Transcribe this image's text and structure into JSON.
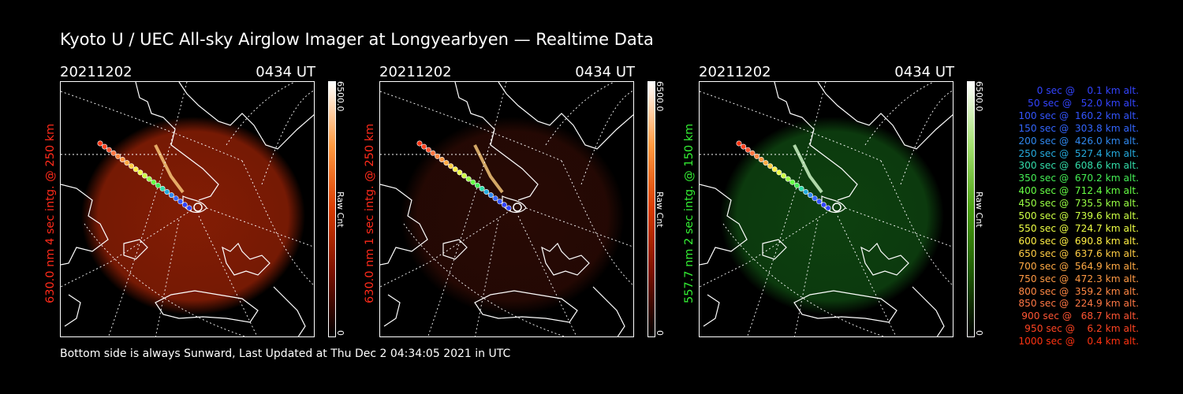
{
  "title": "Kyoto U / UEC All-sky Airglow Imager at Longyearbyen — Realtime Data",
  "footer": "Bottom side is always Sunward, Last Updated at Thu Dec  2 04:34:05 2021 in UTC",
  "panels": [
    {
      "date": "20211202",
      "time": "0434 UT",
      "side_label": "630.0 nm 4 sec intg. @ 250 km",
      "label_color": "#ff2a1a",
      "cbar_max": "6500.0",
      "cbar_min": "0",
      "cbar_unit": "Raw Cnt",
      "glow_color": "#8a1e05",
      "cbar_colors": [
        "#000000",
        "#7a1000",
        "#d83a00",
        "#ff9a40",
        "#ffffff"
      ]
    },
    {
      "date": "20211202",
      "time": "0434 UT",
      "side_label": "630.0 nm 1 sec intg. @ 250 km",
      "label_color": "#ff2a1a",
      "cbar_max": "6500.0",
      "cbar_min": "0",
      "cbar_unit": "Raw Cnt",
      "glow_color": "#2a0a04",
      "cbar_colors": [
        "#000000",
        "#7a1000",
        "#d83a00",
        "#ff9a40",
        "#ffffff"
      ]
    },
    {
      "date": "20211202",
      "time": "0434 UT",
      "side_label": "557.7 nm 2 sec intg. @ 150 km",
      "label_color": "#33ee33",
      "cbar_max": "6500.0",
      "cbar_min": "0",
      "cbar_unit": "Raw Cnt",
      "glow_color": "#0e4410",
      "cbar_colors": [
        "#000000",
        "#1f5a05",
        "#4aa010",
        "#a4e070",
        "#ffffff"
      ]
    }
  ],
  "legend": [
    {
      "text": "   0 sec @    0.1 km alt.",
      "color": "#3344ff"
    },
    {
      "text": "  50 sec @   52.0 km alt.",
      "color": "#3344ff"
    },
    {
      "text": " 100 sec @  160.2 km alt.",
      "color": "#3355ff"
    },
    {
      "text": " 150 sec @  303.8 km alt.",
      "color": "#3366ff"
    },
    {
      "text": " 200 sec @  426.0 km alt.",
      "color": "#2f88ee"
    },
    {
      "text": " 250 sec @  527.4 km alt.",
      "color": "#25aadd"
    },
    {
      "text": " 300 sec @  608.6 km alt.",
      "color": "#33ddaa"
    },
    {
      "text": " 350 sec @  670.2 km alt.",
      "color": "#44ee55"
    },
    {
      "text": " 400 sec @  712.4 km alt.",
      "color": "#66ff44"
    },
    {
      "text": " 450 sec @  735.5 km alt.",
      "color": "#99ff44"
    },
    {
      "text": " 500 sec @  739.6 km alt.",
      "color": "#ccff44"
    },
    {
      "text": " 550 sec @  724.7 km alt.",
      "color": "#eeff44"
    },
    {
      "text": " 600 sec @  690.8 km alt.",
      "color": "#ffee44"
    },
    {
      "text": " 650 sec @  637.6 km alt.",
      "color": "#ffcc44"
    },
    {
      "text": " 700 sec @  564.9 km alt.",
      "color": "#ffaa44"
    },
    {
      "text": " 750 sec @  472.3 km alt.",
      "color": "#ff9944"
    },
    {
      "text": " 800 sec @  359.2 km alt.",
      "color": "#ff8844"
    },
    {
      "text": " 850 sec @  224.9 km alt.",
      "color": "#ff7744"
    },
    {
      "text": " 900 sec @   68.7 km alt.",
      "color": "#ff5533"
    },
    {
      "text": " 950 sec @    6.2 km alt.",
      "color": "#ff4422"
    },
    {
      "text": "1000 sec @    0.4 km alt.",
      "color": "#ff3311"
    }
  ]
}
